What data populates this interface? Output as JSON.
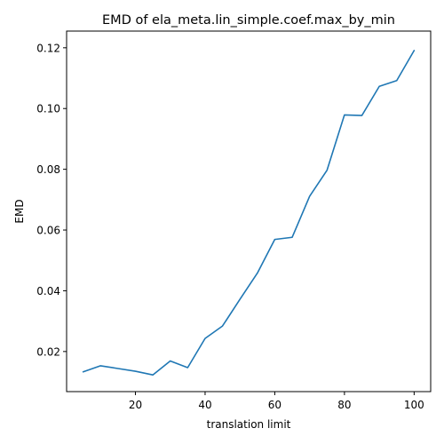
{
  "chart_data": {
    "type": "line",
    "title": "EMD of ela_meta.lin_simple.coef.max_by_min",
    "xlabel": "translation limit",
    "ylabel": "EMD",
    "xlim": [
      0.25,
      104.75
    ],
    "ylim": [
      0.0068,
      0.1255
    ],
    "xticks": [
      20,
      40,
      60,
      80,
      100
    ],
    "yticks": [
      0.02,
      0.04,
      0.06,
      0.08,
      0.1,
      0.12
    ],
    "ytick_labels": [
      "0.02",
      "0.04",
      "0.06",
      "0.08",
      "0.10",
      "0.12"
    ],
    "grid": false,
    "series": [
      {
        "color": "#1f77b4",
        "x": [
          5,
          10,
          15,
          20,
          25,
          30,
          35,
          40,
          45,
          50,
          55,
          60,
          65,
          70,
          75,
          80,
          85,
          90,
          95,
          100
        ],
        "y": [
          0.0133,
          0.0153,
          0.0144,
          0.0135,
          0.0123,
          0.0169,
          0.0147,
          0.0243,
          0.0284,
          0.0372,
          0.0458,
          0.0569,
          0.0576,
          0.0711,
          0.0797,
          0.0979,
          0.0977,
          0.1073,
          0.1092,
          0.1191
        ]
      }
    ]
  }
}
